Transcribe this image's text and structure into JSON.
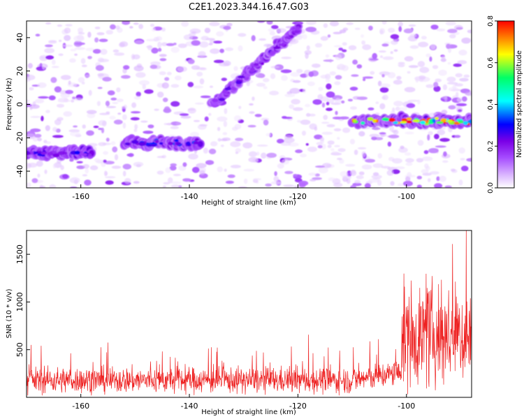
{
  "figure_title": "C2E1.2023.344.16.47.G03",
  "colors": {
    "snr_line": "#ee2222",
    "colormap": [
      "#ffffff",
      "#d9b3ff",
      "#a64dff",
      "#7a00e6",
      "#0000ff",
      "#00ffff",
      "#00ff66",
      "#ffff00",
      "#ff0000"
    ]
  },
  "chart_data": [
    {
      "type": "heatmap",
      "xlabel": "Height of straight line (km)",
      "ylabel": "Frequency (Hz)",
      "xlim": [
        -170,
        -88
      ],
      "ylim": [
        -50,
        50
      ],
      "xticks": [
        -160,
        -140,
        -120,
        -100
      ],
      "yticks": [
        -40,
        -20,
        0,
        20,
        40
      ],
      "grid": false,
      "colorbar": {
        "label": "Normalized spectral amplitude",
        "range": [
          0.0,
          0.8
        ],
        "ticks": [
          "0.0",
          "0.2",
          "0.4",
          "0.6",
          "0.8"
        ]
      },
      "features": [
        {
          "name": "band-left",
          "x": [
            -170,
            -158
          ],
          "freq": -29,
          "peak_amplitude": 0.3
        },
        {
          "name": "band-middle",
          "x": [
            -152,
            -138
          ],
          "freq": -23,
          "peak_amplitude": 0.35
        },
        {
          "name": "diagonal-track",
          "x": [
            -136,
            -120
          ],
          "freq": [
            -1,
            45
          ],
          "peak_amplitude": 0.25
        },
        {
          "name": "band-right",
          "x": [
            -110,
            -88
          ],
          "freq": -10,
          "peak_amplitude": 0.8
        }
      ]
    },
    {
      "type": "line",
      "xlabel": "Height of straight line (km)",
      "ylabel": "SNR (10 * v/v)",
      "xlim": [
        -170,
        -88
      ],
      "ylim": [
        0,
        1750
      ],
      "xticks": [
        -160,
        -140,
        -120,
        -100
      ],
      "yticks": [
        500,
        1000,
        1500
      ],
      "grid": false,
      "series": [
        {
          "values_summary": {
            "baseline_mean": 180,
            "baseline_spread": 150,
            "step_x": -101,
            "after_mean": 650,
            "after_spread": 450,
            "max": 1750
          }
        }
      ]
    }
  ]
}
